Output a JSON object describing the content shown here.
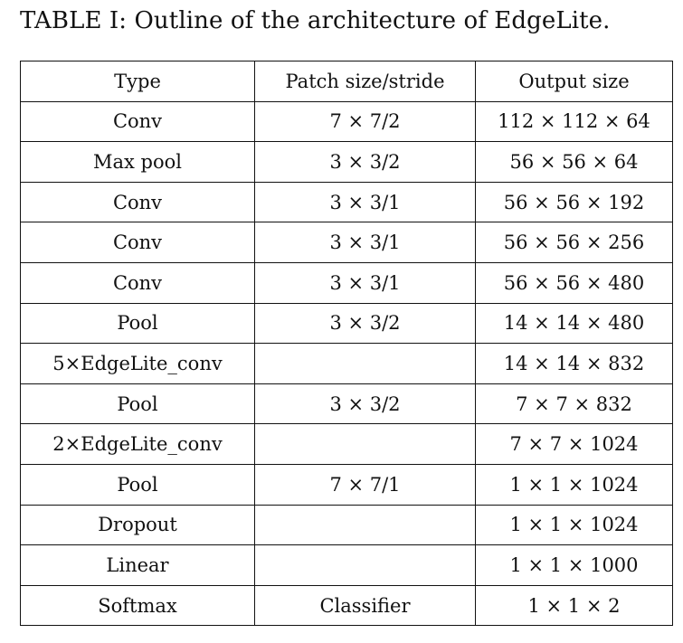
{
  "caption": "TABLE I: Outline of the architecture of EdgeLite.",
  "table": {
    "headers": [
      "Type",
      "Patch size/stride",
      "Output size"
    ],
    "rows": [
      [
        "Conv",
        "7 × 7/2",
        "112 × 112 × 64"
      ],
      [
        "Max pool",
        "3 × 3/2",
        "56 × 56 × 64"
      ],
      [
        "Conv",
        "3 × 3/1",
        "56 × 56 × 192"
      ],
      [
        "Conv",
        "3 × 3/1",
        "56 × 56 × 256"
      ],
      [
        "Conv",
        "3 × 3/1",
        "56 × 56 × 480"
      ],
      [
        "Pool",
        "3 × 3/2",
        "14 × 14 × 480"
      ],
      [
        "5×EdgeLite_conv",
        "",
        "14 × 14 × 832"
      ],
      [
        "Pool",
        "3 × 3/2",
        "7 × 7 × 832"
      ],
      [
        "2×EdgeLite_conv",
        "",
        "7 × 7 × 1024"
      ],
      [
        "Pool",
        "7 × 7/1",
        "1 × 1 × 1024"
      ],
      [
        "Dropout",
        "",
        "1 × 1 × 1024"
      ],
      [
        "Linear",
        "",
        "1 × 1 × 1000"
      ],
      [
        "Softmax",
        "Classifier",
        "1 × 1 × 2"
      ]
    ]
  }
}
